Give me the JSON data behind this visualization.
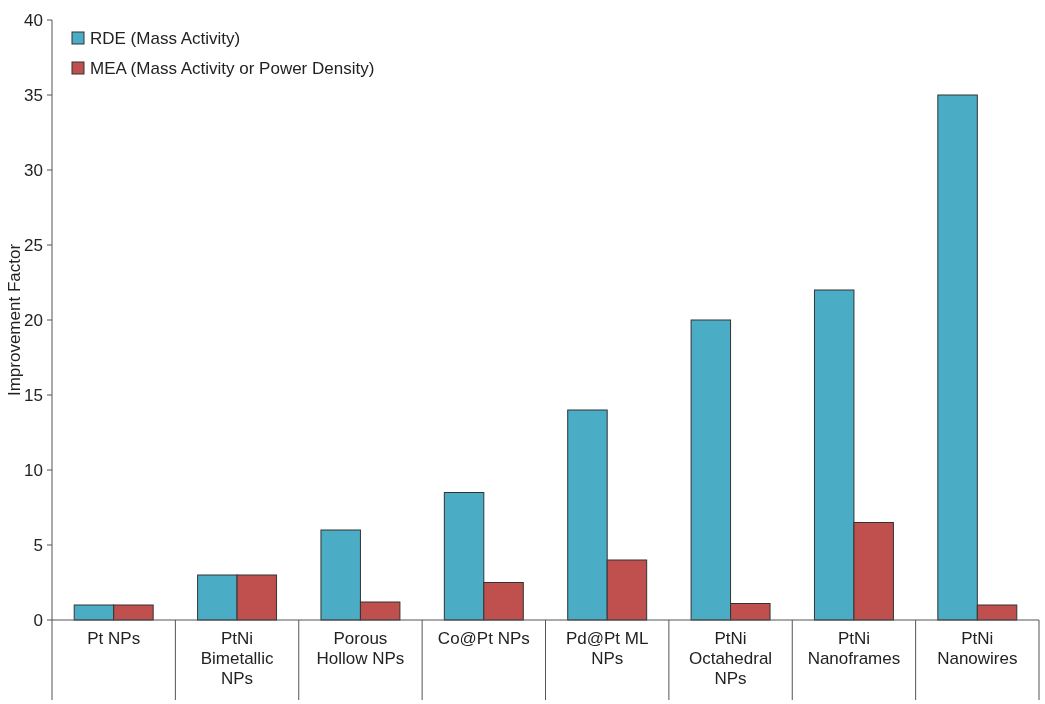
{
  "chart_data": {
    "type": "bar",
    "ylabel": "Improvement Factor",
    "categories": [
      "Pt NPs",
      "PtNi Bimetallic NPs",
      "Porous Hollow NPs",
      "Co@Pt NPs",
      "Pd@Pt ML NPs",
      "PtNi Octahedral NPs",
      "PtNi Nanoframes",
      "PtNi Nanowires"
    ],
    "series": [
      {
        "name": "RDE (Mass Activity)",
        "color": "#4bacc6",
        "values": [
          1,
          3,
          6,
          8.5,
          14,
          20,
          22,
          35
        ]
      },
      {
        "name": "MEA (Mass Activity or Power Density)",
        "color": "#c0504d",
        "values": [
          1,
          3,
          1.2,
          2.5,
          4,
          1.1,
          6.5,
          1
        ]
      }
    ],
    "ylim": [
      0,
      40
    ],
    "yticks": [
      0,
      5,
      10,
      15,
      20,
      25,
      30,
      35,
      40
    ],
    "grid": false,
    "legend": "top left"
  }
}
